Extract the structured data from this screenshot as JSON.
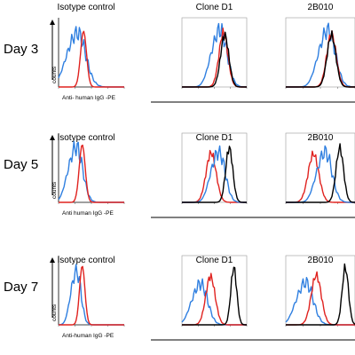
{
  "colors": {
    "isotype": "#2f7fe0",
    "day3_sample": "#e0221f",
    "day5_7_sample": "#e0221f",
    "treated": "#000000"
  },
  "rows": [
    {
      "day": "Day 3",
      "col_labels": [
        "Isotype control",
        "Clone D1",
        "2B010"
      ],
      "y_axis_label": "counts",
      "x_axis_label": "Anti- human IgG -PE",
      "panels": [
        {
          "title_index": 0,
          "series": [
            {
              "name": "",
              "color": "isotype",
              "peak_x": 0.3,
              "width": 0.26,
              "height": 0.92,
              "shape": "broad"
            },
            {
              "name": "",
              "color": "day3_sample",
              "peak_x": 0.38,
              "width": 0.1,
              "height": 0.85,
              "shape": "narrow"
            }
          ]
        },
        {
          "title_index": 1,
          "series": [
            {
              "name": "",
              "color": "isotype",
              "peak_x": 0.6,
              "width": 0.22,
              "height": 0.97,
              "shape": "broad"
            },
            {
              "name": "",
              "color": "day3_sample",
              "peak_x": 0.64,
              "width": 0.15,
              "height": 0.9,
              "shape": "normal"
            },
            {
              "name": "",
              "color": "treated",
              "peak_x": 0.66,
              "width": 0.14,
              "height": 0.86,
              "shape": "normal"
            }
          ]
        },
        {
          "title_index": 2,
          "series": [
            {
              "name": "",
              "color": "isotype",
              "peak_x": 0.62,
              "width": 0.22,
              "height": 0.97,
              "shape": "broad"
            },
            {
              "name": "",
              "color": "day3_sample",
              "peak_x": 0.66,
              "width": 0.15,
              "height": 0.88,
              "shape": "normal"
            },
            {
              "name": "",
              "color": "treated",
              "peak_x": 0.66,
              "width": 0.14,
              "height": 0.86,
              "shape": "normal"
            }
          ]
        }
      ]
    },
    {
      "day": "Day 5",
      "col_labels": [
        "Isotype control",
        "Clone D1",
        "2B010"
      ],
      "y_axis_label": "counts",
      "x_axis_label": "Anti human IgG -PE",
      "panels": [
        {
          "title_index": 0,
          "series": [
            {
              "name": "",
              "color": "isotype",
              "peak_x": 0.28,
              "width": 0.2,
              "height": 0.94,
              "shape": "broad"
            },
            {
              "name": "",
              "color": "day5_7_sample",
              "peak_x": 0.36,
              "width": 0.1,
              "height": 0.88,
              "shape": "narrow"
            }
          ]
        },
        {
          "title_index": 1,
          "series": [
            {
              "name": "",
              "color": "day5_7_sample",
              "peak_x": 0.45,
              "width": 0.17,
              "height": 0.82,
              "shape": "normal"
            },
            {
              "name": "",
              "color": "isotype",
              "peak_x": 0.58,
              "width": 0.2,
              "height": 0.86,
              "shape": "broad"
            },
            {
              "name": "",
              "color": "treated",
              "peak_x": 0.73,
              "width": 0.12,
              "height": 0.9,
              "shape": "normal"
            }
          ]
        },
        {
          "title_index": 2,
          "series": [
            {
              "name": "",
              "color": "day5_7_sample",
              "peak_x": 0.4,
              "width": 0.17,
              "height": 0.8,
              "shape": "normal"
            },
            {
              "name": "",
              "color": "isotype",
              "peak_x": 0.58,
              "width": 0.2,
              "height": 0.86,
              "shape": "broad"
            },
            {
              "name": "",
              "color": "treated",
              "peak_x": 0.78,
              "width": 0.12,
              "height": 0.9,
              "shape": "normal"
            }
          ]
        }
      ]
    },
    {
      "day": "Day 7",
      "col_labels": [
        "Isotype control",
        "Clone D1",
        "2B010"
      ],
      "y_axis_label": "counts",
      "x_axis_label": "Anti-human IgG -PE",
      "panels": [
        {
          "title_index": 0,
          "series": [
            {
              "name": "",
              "color": "isotype",
              "peak_x": 0.28,
              "width": 0.14,
              "height": 0.92,
              "shape": "broad"
            },
            {
              "name": "",
              "color": "day5_7_sample",
              "peak_x": 0.36,
              "width": 0.09,
              "height": 0.9,
              "shape": "narrow"
            }
          ]
        },
        {
          "title_index": 1,
          "series": [
            {
              "name": "",
              "color": "isotype",
              "peak_x": 0.3,
              "width": 0.22,
              "height": 0.7,
              "shape": "broad"
            },
            {
              "name": "",
              "color": "day5_7_sample",
              "peak_x": 0.44,
              "width": 0.16,
              "height": 0.8,
              "shape": "normal"
            },
            {
              "name": "",
              "color": "treated",
              "peak_x": 0.8,
              "width": 0.1,
              "height": 0.95,
              "shape": "normal"
            }
          ]
        },
        {
          "title_index": 2,
          "series": [
            {
              "name": "",
              "color": "isotype",
              "peak_x": 0.3,
              "width": 0.22,
              "height": 0.72,
              "shape": "broad"
            },
            {
              "name": "",
              "color": "day5_7_sample",
              "peak_x": 0.44,
              "width": 0.16,
              "height": 0.82,
              "shape": "normal"
            },
            {
              "name": "",
              "color": "treated",
              "peak_x": 0.86,
              "width": 0.1,
              "height": 0.95,
              "shape": "normal"
            }
          ]
        }
      ]
    }
  ],
  "chart_data": {
    "type": "line",
    "title": "",
    "xlabel": "",
    "ylabel": "counts",
    "grid": false,
    "legend": "none"
  }
}
